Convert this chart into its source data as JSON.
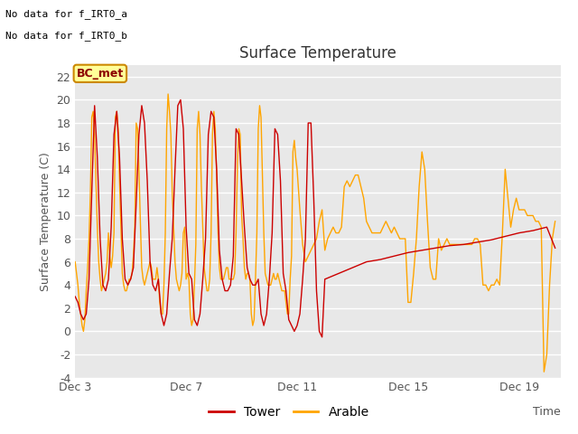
{
  "title": "Surface Temperature",
  "ylabel": "Surface Temperature (C)",
  "xlabel": "Time",
  "ylim": [
    -4,
    23
  ],
  "background_color": "#ffffff",
  "plot_bg_color": "#e8e8e8",
  "no_data_text_1": "No data for f_IRT0_a",
  "no_data_text_2": "No data for f̲IRT0̲b",
  "bc_met_label": "BC_met",
  "legend_entries": [
    "Tower",
    "Arable"
  ],
  "tower_color": "#cc0000",
  "arable_color": "#ffa500",
  "xtick_positions": [
    3,
    7,
    11,
    15,
    19
  ],
  "xtick_labels": [
    "Dec 3",
    "Dec 7",
    "Dec 11",
    "Dec 15",
    "Dec 19"
  ],
  "ytick_positions": [
    -4,
    -2,
    0,
    2,
    4,
    6,
    8,
    10,
    12,
    14,
    16,
    18,
    20,
    22
  ],
  "tower_x": [
    3.0,
    3.1,
    3.2,
    3.3,
    3.4,
    3.5,
    3.6,
    3.7,
    3.8,
    3.9,
    4.0,
    4.1,
    4.2,
    4.3,
    4.4,
    4.5,
    4.6,
    4.7,
    4.8,
    4.9,
    5.0,
    5.1,
    5.2,
    5.3,
    5.4,
    5.5,
    5.6,
    5.7,
    5.8,
    5.9,
    6.0,
    6.1,
    6.2,
    6.3,
    6.4,
    6.5,
    6.6,
    6.7,
    6.8,
    6.9,
    7.0,
    7.1,
    7.2,
    7.3,
    7.4,
    7.5,
    7.6,
    7.7,
    7.8,
    7.9,
    8.0,
    8.1,
    8.2,
    8.3,
    8.4,
    8.5,
    8.6,
    8.7,
    8.8,
    8.9,
    9.0,
    9.1,
    9.2,
    9.3,
    9.4,
    9.5,
    9.6,
    9.7,
    9.8,
    9.9,
    10.0,
    10.1,
    10.2,
    10.3,
    10.4,
    10.5,
    10.6,
    10.7,
    10.8,
    10.9,
    11.0,
    11.1,
    11.2,
    11.3,
    11.4,
    11.5,
    11.6,
    11.7,
    11.8,
    11.9,
    12.0,
    12.5,
    13.0,
    13.5,
    14.0,
    14.5,
    15.0,
    15.5,
    16.0,
    16.5,
    17.0,
    17.5,
    18.0,
    18.5,
    19.0,
    19.5,
    20.0,
    20.3
  ],
  "tower_y": [
    3.0,
    2.5,
    1.5,
    1.0,
    1.5,
    4.5,
    12.0,
    19.5,
    15.0,
    8.0,
    4.0,
    3.5,
    4.5,
    9.0,
    17.0,
    19.0,
    15.0,
    8.0,
    4.5,
    4.0,
    4.5,
    5.5,
    11.0,
    17.0,
    19.5,
    18.0,
    13.0,
    6.0,
    4.0,
    3.5,
    4.5,
    1.5,
    0.5,
    1.5,
    5.0,
    8.0,
    14.0,
    19.5,
    20.0,
    17.5,
    9.0,
    5.0,
    4.5,
    1.0,
    0.5,
    1.5,
    4.5,
    8.0,
    17.0,
    19.0,
    18.5,
    14.0,
    7.0,
    4.5,
    3.5,
    3.5,
    4.0,
    6.5,
    17.5,
    17.0,
    13.0,
    9.0,
    5.5,
    4.5,
    4.0,
    4.0,
    4.5,
    1.5,
    0.5,
    1.5,
    4.5,
    8.5,
    17.5,
    17.0,
    13.0,
    5.0,
    3.5,
    1.0,
    0.5,
    0.0,
    0.5,
    1.5,
    4.5,
    8.0,
    18.0,
    18.0,
    11.5,
    3.5,
    0.0,
    -0.5,
    4.5,
    5.0,
    5.5,
    6.0,
    6.2,
    6.5,
    6.8,
    7.0,
    7.2,
    7.4,
    7.5,
    7.7,
    7.9,
    8.2,
    8.5,
    8.7,
    9.0,
    7.2
  ],
  "arable_x": [
    3.0,
    3.05,
    3.1,
    3.15,
    3.2,
    3.25,
    3.3,
    3.35,
    3.4,
    3.45,
    3.5,
    3.55,
    3.6,
    3.65,
    3.7,
    3.75,
    3.8,
    3.85,
    3.9,
    3.95,
    4.0,
    4.05,
    4.1,
    4.15,
    4.2,
    4.25,
    4.3,
    4.35,
    4.4,
    4.45,
    4.5,
    4.55,
    4.6,
    4.65,
    4.7,
    4.75,
    4.8,
    4.85,
    4.9,
    4.95,
    5.0,
    5.05,
    5.1,
    5.15,
    5.2,
    5.25,
    5.3,
    5.35,
    5.4,
    5.45,
    5.5,
    5.55,
    5.6,
    5.65,
    5.7,
    5.75,
    5.8,
    5.85,
    5.9,
    5.95,
    6.0,
    6.05,
    6.1,
    6.15,
    6.2,
    6.25,
    6.3,
    6.35,
    6.4,
    6.45,
    6.5,
    6.55,
    6.6,
    6.65,
    6.7,
    6.75,
    6.8,
    6.85,
    6.9,
    6.95,
    7.0,
    7.05,
    7.1,
    7.15,
    7.2,
    7.25,
    7.3,
    7.35,
    7.4,
    7.45,
    7.5,
    7.55,
    7.6,
    7.65,
    7.7,
    7.75,
    7.8,
    7.85,
    7.9,
    7.95,
    8.0,
    8.05,
    8.1,
    8.15,
    8.2,
    8.25,
    8.3,
    8.35,
    8.4,
    8.45,
    8.5,
    8.55,
    8.6,
    8.65,
    8.7,
    8.75,
    8.8,
    8.85,
    8.9,
    8.95,
    9.0,
    9.05,
    9.1,
    9.15,
    9.2,
    9.25,
    9.3,
    9.35,
    9.4,
    9.45,
    9.5,
    9.55,
    9.6,
    9.65,
    9.7,
    9.75,
    9.8,
    9.85,
    9.9,
    9.95,
    10.0,
    10.05,
    10.1,
    10.15,
    10.2,
    10.25,
    10.3,
    10.35,
    10.4,
    10.45,
    10.5,
    10.55,
    10.6,
    10.65,
    10.7,
    10.75,
    10.8,
    10.85,
    10.9,
    10.95,
    11.0,
    11.1,
    11.2,
    11.3,
    11.4,
    11.5,
    11.6,
    11.7,
    11.8,
    11.9,
    12.0,
    12.1,
    12.2,
    12.3,
    12.4,
    12.5,
    12.6,
    12.7,
    12.8,
    12.9,
    13.0,
    13.1,
    13.2,
    13.3,
    13.4,
    13.5,
    13.6,
    13.7,
    13.8,
    13.9,
    14.0,
    14.1,
    14.2,
    14.3,
    14.4,
    14.5,
    14.6,
    14.7,
    14.8,
    14.9,
    15.0,
    15.1,
    15.2,
    15.3,
    15.4,
    15.5,
    15.6,
    15.7,
    15.8,
    15.9,
    16.0,
    16.1,
    16.2,
    16.3,
    16.4,
    16.5,
    16.6,
    16.7,
    16.8,
    16.9,
    17.0,
    17.1,
    17.2,
    17.3,
    17.4,
    17.5,
    17.6,
    17.7,
    17.8,
    17.9,
    18.0,
    18.1,
    18.2,
    18.3,
    18.4,
    18.5,
    18.6,
    18.7,
    18.8,
    18.9,
    19.0,
    19.1,
    19.2,
    19.3,
    19.4,
    19.5,
    19.6,
    19.7,
    19.8,
    19.9,
    20.0,
    20.1,
    20.2,
    20.3
  ],
  "arable_y": [
    6.0,
    5.0,
    4.0,
    2.5,
    1.5,
    0.5,
    0.0,
    1.0,
    3.5,
    5.5,
    8.0,
    12.0,
    18.5,
    19.0,
    17.0,
    13.0,
    9.0,
    6.0,
    4.5,
    3.5,
    4.0,
    4.5,
    5.0,
    6.0,
    8.5,
    6.5,
    5.5,
    6.5,
    8.5,
    18.5,
    19.0,
    17.5,
    13.0,
    9.0,
    5.0,
    4.0,
    3.5,
    3.5,
    4.0,
    4.5,
    4.5,
    5.0,
    6.5,
    9.0,
    18.0,
    17.5,
    14.0,
    9.5,
    5.5,
    4.5,
    4.0,
    4.5,
    5.0,
    5.5,
    6.0,
    5.5,
    4.5,
    4.5,
    4.5,
    5.5,
    4.5,
    2.5,
    1.5,
    1.5,
    4.0,
    8.5,
    17.5,
    20.5,
    19.0,
    17.0,
    12.0,
    9.0,
    6.0,
    4.5,
    4.0,
    3.5,
    4.0,
    5.0,
    8.5,
    9.0,
    4.5,
    5.0,
    4.5,
    1.5,
    0.5,
    1.0,
    4.0,
    7.5,
    17.5,
    19.0,
    17.0,
    12.5,
    9.0,
    5.5,
    4.5,
    3.5,
    3.5,
    4.5,
    8.5,
    17.0,
    19.0,
    17.5,
    13.5,
    8.5,
    5.5,
    4.5,
    4.5,
    4.5,
    5.0,
    5.5,
    5.5,
    4.5,
    4.5,
    4.5,
    4.5,
    5.0,
    8.5,
    14.5,
    17.5,
    17.0,
    10.0,
    8.0,
    5.5,
    4.5,
    5.0,
    5.0,
    4.5,
    1.5,
    0.5,
    1.0,
    4.5,
    8.5,
    17.5,
    19.5,
    18.5,
    13.5,
    8.5,
    5.0,
    4.5,
    4.0,
    4.0,
    4.0,
    4.5,
    5.0,
    4.5,
    4.5,
    5.0,
    4.5,
    4.0,
    3.5,
    3.5,
    3.5,
    2.5,
    1.5,
    1.5,
    4.5,
    6.5,
    15.5,
    16.5,
    15.0,
    14.0,
    10.5,
    7.5,
    6.0,
    6.5,
    7.0,
    7.5,
    8.0,
    9.5,
    10.5,
    7.0,
    8.0,
    8.5,
    9.0,
    8.5,
    8.5,
    9.0,
    12.5,
    13.0,
    12.5,
    13.0,
    13.5,
    13.5,
    12.5,
    11.5,
    9.5,
    9.0,
    8.5,
    8.5,
    8.5,
    8.5,
    9.0,
    9.5,
    9.0,
    8.5,
    9.0,
    8.5,
    8.0,
    8.0,
    8.0,
    2.5,
    2.5,
    5.0,
    8.0,
    12.5,
    15.5,
    14.0,
    9.5,
    5.5,
    4.5,
    4.5,
    8.0,
    7.0,
    7.5,
    8.0,
    7.5,
    7.5,
    7.5,
    7.5,
    7.5,
    7.5,
    7.5,
    7.5,
    7.5,
    8.0,
    8.0,
    7.5,
    4.0,
    4.0,
    3.5,
    4.0,
    4.0,
    4.5,
    4.0,
    8.5,
    14.0,
    11.5,
    9.0,
    10.5,
    11.5,
    10.5,
    10.5,
    10.5,
    10.0,
    10.0,
    10.0,
    9.5,
    9.5,
    9.0,
    -3.5,
    -2.0,
    4.0,
    8.0,
    9.5
  ]
}
